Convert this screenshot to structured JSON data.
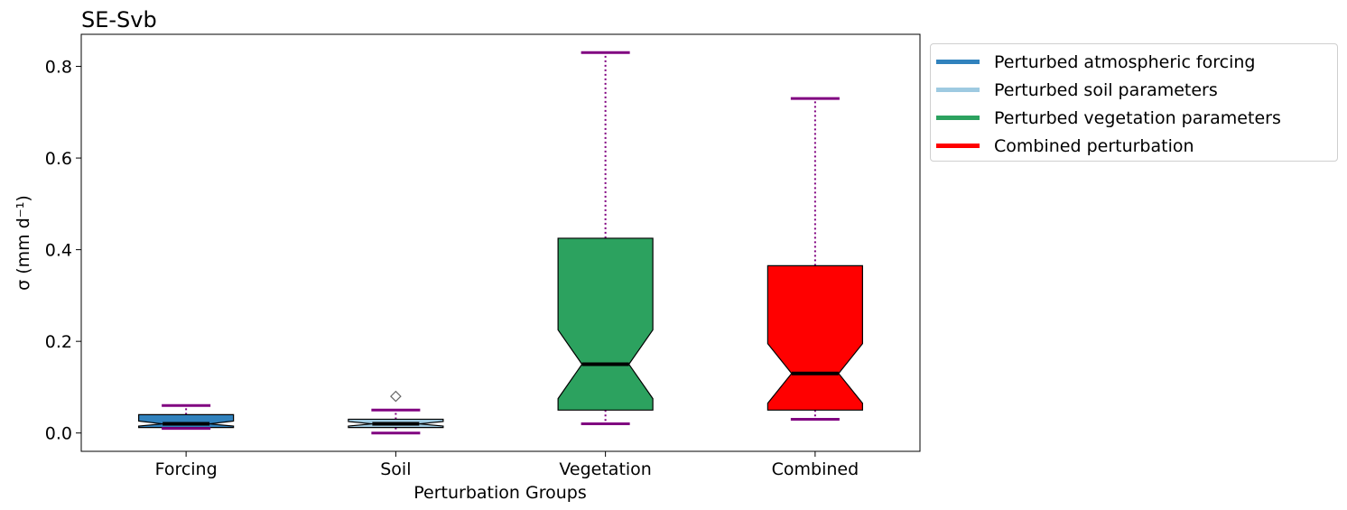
{
  "chart_data": {
    "type": "boxplot",
    "title": "SE-Svb",
    "xlabel": "Perturbation Groups",
    "ylabel": "σ (mm d⁻¹)",
    "ylim": [
      -0.04,
      0.87
    ],
    "yticks": [
      0.0,
      0.2,
      0.4,
      0.6,
      0.8
    ],
    "ytick_labels": [
      "0.0",
      "0.2",
      "0.4",
      "0.6",
      "0.8"
    ],
    "categories": [
      "Forcing",
      "Soil",
      "Vegetation",
      "Combined"
    ],
    "whisker_color": "#800080",
    "median_color": "#000000",
    "boxes": [
      {
        "category": "Forcing",
        "color": "#3182bd",
        "whisker_low": 0.01,
        "q1": 0.012,
        "notch_low": 0.015,
        "median": 0.02,
        "notch_high": 0.026,
        "q3": 0.04,
        "whisker_high": 0.06,
        "outliers": []
      },
      {
        "category": "Soil",
        "color": "#9ecae1",
        "whisker_low": 0.0,
        "q1": 0.012,
        "notch_low": 0.015,
        "median": 0.02,
        "notch_high": 0.025,
        "q3": 0.03,
        "whisker_high": 0.05,
        "outliers": [
          0.08
        ]
      },
      {
        "category": "Vegetation",
        "color": "#2ca25f",
        "whisker_low": 0.02,
        "q1": 0.05,
        "notch_low": 0.075,
        "median": 0.15,
        "notch_high": 0.225,
        "q3": 0.425,
        "whisker_high": 0.83,
        "outliers": []
      },
      {
        "category": "Combined",
        "color": "#ff0000",
        "whisker_low": 0.03,
        "q1": 0.05,
        "notch_low": 0.065,
        "median": 0.13,
        "notch_high": 0.195,
        "q3": 0.365,
        "whisker_high": 0.73,
        "outliers": []
      }
    ],
    "legend": {
      "placement": "outside-upper-right",
      "entries": [
        {
          "label": "Perturbed atmospheric forcing",
          "color": "#3182bd"
        },
        {
          "label": "Perturbed soil parameters",
          "color": "#9ecae1"
        },
        {
          "label": "Perturbed vegetation parameters",
          "color": "#2ca25f"
        },
        {
          "label": "Combined perturbation",
          "color": "#ff0000"
        }
      ]
    }
  }
}
